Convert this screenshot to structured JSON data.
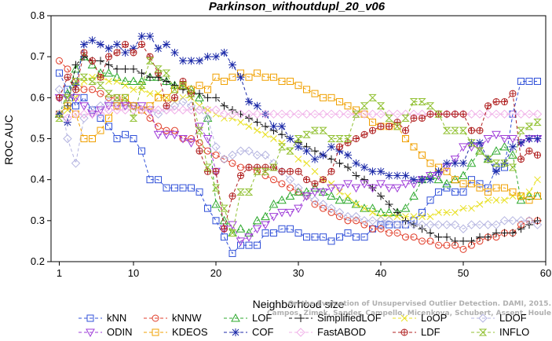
{
  "chart_data": {
    "type": "line",
    "title": "Parkinson_withoutdupl_20_v06",
    "xlabel": "Neighborhood size",
    "ylabel": "ROC AUC",
    "xlim": [
      0,
      60
    ],
    "ylim": [
      0.2,
      0.8
    ],
    "xticks": [
      "1",
      "10",
      "20",
      "30",
      "40",
      "50",
      "60"
    ],
    "yticks": [
      "0.2",
      "0.3",
      "0.4",
      "0.5",
      "0.6",
      "0.7",
      "0.8"
    ],
    "grid": false,
    "legend_position": "bottom",
    "watermark": [
      "Campos, Zimek, Sander, Campello, Micenkova, Schubert, Assent, Houle",
      "On the Evaluation of Unsupervised Outlier Detection. DAMI, 2015."
    ],
    "x": [
      1,
      2,
      3,
      4,
      5,
      6,
      7,
      8,
      9,
      10,
      11,
      12,
      13,
      14,
      15,
      16,
      17,
      18,
      19,
      20,
      21,
      22,
      23,
      24,
      25,
      26,
      27,
      28,
      29,
      30,
      31,
      32,
      33,
      34,
      35,
      36,
      37,
      38,
      39,
      40,
      41,
      42,
      43,
      44,
      45,
      46,
      47,
      48,
      49,
      50,
      51,
      52,
      53,
      54,
      55,
      56,
      57,
      58,
      59
    ],
    "series": [
      {
        "name": "kNN",
        "color": "#3050d8",
        "marker": "square",
        "values": [
          0.66,
          0.62,
          0.58,
          0.6,
          0.57,
          0.55,
          0.53,
          0.5,
          0.51,
          0.5,
          0.47,
          0.4,
          0.4,
          0.38,
          0.38,
          0.38,
          0.38,
          0.37,
          0.33,
          0.3,
          0.26,
          0.22,
          0.24,
          0.24,
          0.24,
          0.27,
          0.27,
          0.28,
          0.28,
          0.27,
          0.26,
          0.26,
          0.26,
          0.25,
          0.26,
          0.27,
          0.26,
          0.26,
          0.28,
          0.29,
          0.29,
          0.29,
          0.29,
          0.3,
          0.32,
          0.35,
          0.37,
          0.38,
          0.37,
          0.37,
          0.4,
          0.39,
          0.38,
          0.43,
          0.43,
          0.56,
          0.64,
          0.64,
          0.64
        ]
      },
      {
        "name": "kNNW",
        "color": "#e03c28",
        "marker": "circle",
        "values": [
          0.69,
          0.67,
          0.64,
          0.62,
          0.62,
          0.61,
          0.6,
          0.6,
          0.59,
          0.58,
          0.57,
          0.55,
          0.53,
          0.52,
          0.52,
          0.5,
          0.5,
          0.49,
          0.47,
          0.46,
          0.45,
          0.44,
          0.43,
          0.43,
          0.42,
          0.41,
          0.4,
          0.39,
          0.38,
          0.37,
          0.36,
          0.34,
          0.33,
          0.32,
          0.31,
          0.3,
          0.3,
          0.29,
          0.28,
          0.28,
          0.27,
          0.27,
          0.26,
          0.26,
          0.25,
          0.25,
          0.24,
          0.24,
          0.24,
          0.23,
          0.24,
          0.25,
          0.26,
          0.26,
          0.27,
          0.27,
          0.29,
          0.3,
          0.3
        ]
      },
      {
        "name": "LOF",
        "color": "#2ca82c",
        "marker": "triangle-up",
        "values": [
          0.56,
          0.61,
          0.67,
          0.7,
          0.68,
          0.66,
          0.66,
          0.65,
          0.64,
          0.64,
          0.64,
          0.65,
          0.65,
          0.64,
          0.63,
          0.63,
          0.62,
          0.6,
          0.55,
          0.34,
          0.3,
          0.27,
          0.28,
          0.27,
          0.3,
          0.31,
          0.34,
          0.35,
          0.36,
          0.37,
          0.37,
          0.38,
          0.37,
          0.36,
          0.35,
          0.35,
          0.34,
          0.33,
          0.33,
          0.32,
          0.32,
          0.32,
          0.33,
          0.36,
          0.4,
          0.41,
          0.4,
          0.39,
          0.4,
          0.41,
          0.44,
          0.47,
          0.45,
          0.47,
          0.48,
          0.46,
          0.35,
          0.36,
          0.36
        ]
      },
      {
        "name": "SimplifiedLOF",
        "color": "#111111",
        "marker": "plus",
        "values": [
          0.56,
          0.58,
          0.68,
          0.7,
          0.69,
          0.69,
          0.68,
          0.67,
          0.67,
          0.67,
          0.66,
          0.65,
          0.65,
          0.64,
          0.63,
          0.62,
          0.61,
          0.61,
          0.6,
          0.6,
          0.58,
          0.57,
          0.56,
          0.55,
          0.54,
          0.53,
          0.52,
          0.51,
          0.5,
          0.49,
          0.48,
          0.47,
          0.46,
          0.45,
          0.44,
          0.43,
          0.41,
          0.4,
          0.38,
          0.36,
          0.34,
          0.32,
          0.3,
          0.29,
          0.28,
          0.27,
          0.26,
          0.26,
          0.25,
          0.25,
          0.25,
          0.26,
          0.26,
          0.27,
          0.27,
          0.27,
          0.28,
          0.29,
          0.3
        ]
      },
      {
        "name": "LoOP",
        "color": "#e8e020",
        "marker": "x",
        "values": [
          0.55,
          0.57,
          0.6,
          0.64,
          0.65,
          0.65,
          0.64,
          0.64,
          0.63,
          0.62,
          0.62,
          0.61,
          0.61,
          0.6,
          0.59,
          0.6,
          0.6,
          0.58,
          0.57,
          0.56,
          0.55,
          0.55,
          0.54,
          0.53,
          0.52,
          0.51,
          0.5,
          0.49,
          0.47,
          0.45,
          0.44,
          0.42,
          0.4,
          0.39,
          0.37,
          0.36,
          0.34,
          0.33,
          0.32,
          0.31,
          0.31,
          0.31,
          0.31,
          0.31,
          0.31,
          0.31,
          0.32,
          0.32,
          0.32,
          0.33,
          0.33,
          0.34,
          0.35,
          0.35,
          0.35,
          0.36,
          0.36,
          0.37,
          0.4
        ]
      },
      {
        "name": "LDOF",
        "color": "#b4b4e0",
        "marker": "diamond",
        "values": [
          0.62,
          0.5,
          0.44,
          0.55,
          0.57,
          0.58,
          0.59,
          0.59,
          0.58,
          0.58,
          0.57,
          0.57,
          0.56,
          0.57,
          0.58,
          0.59,
          0.58,
          0.57,
          0.55,
          0.48,
          0.45,
          0.46,
          0.47,
          0.47,
          0.46,
          0.46,
          0.44,
          0.42,
          0.4,
          0.38,
          0.36,
          0.35,
          0.34,
          0.33,
          0.32,
          0.31,
          0.31,
          0.3,
          0.3,
          0.3,
          0.3,
          0.29,
          0.29,
          0.29,
          0.29,
          0.29,
          0.29,
          0.29,
          0.29,
          0.28,
          0.29,
          0.29,
          0.29,
          0.29,
          0.3,
          0.3,
          0.3,
          0.3,
          0.29
        ]
      },
      {
        "name": "ODIN",
        "color": "#9e3cd8",
        "marker": "triangle-down",
        "values": [
          0.6,
          0.6,
          0.6,
          0.58,
          0.56,
          0.57,
          0.58,
          0.58,
          0.58,
          0.58,
          0.58,
          0.57,
          0.51,
          0.51,
          0.51,
          0.5,
          0.49,
          0.53,
          0.5,
          0.42,
          0.28,
          0.29,
          0.25,
          0.26,
          0.28,
          0.29,
          0.31,
          0.32,
          0.32,
          0.33,
          0.36,
          0.37,
          0.37,
          0.38,
          0.38,
          0.39,
          0.38,
          0.39,
          0.38,
          0.39,
          0.38,
          0.38,
          0.39,
          0.39,
          0.4,
          0.41,
          0.41,
          0.43,
          0.45,
          0.48,
          0.48,
          0.48,
          0.5,
          0.51,
          0.5,
          0.5,
          0.49,
          0.5,
          0.5
        ]
      },
      {
        "name": "KDEOS",
        "color": "#f0a000",
        "marker": "square",
        "values": [
          0.56,
          0.58,
          0.56,
          0.5,
          0.5,
          0.52,
          0.55,
          0.58,
          0.6,
          0.58,
          0.57,
          0.58,
          0.6,
          0.6,
          0.62,
          0.63,
          0.62,
          0.63,
          0.62,
          0.65,
          0.64,
          0.65,
          0.66,
          0.65,
          0.66,
          0.65,
          0.65,
          0.64,
          0.64,
          0.63,
          0.62,
          0.61,
          0.6,
          0.6,
          0.59,
          0.58,
          0.57,
          0.56,
          0.54,
          0.53,
          0.53,
          0.53,
          0.5,
          0.48,
          0.46,
          0.44,
          0.43,
          0.42,
          0.4,
          0.39,
          0.39,
          0.38,
          0.37,
          0.38,
          0.38,
          0.37,
          0.36,
          0.35,
          0.36
        ]
      },
      {
        "name": "COF",
        "color": "#1c2aa8",
        "marker": "asterisk",
        "values": [
          0.56,
          0.54,
          0.63,
          0.73,
          0.74,
          0.73,
          0.72,
          0.73,
          0.71,
          0.72,
          0.75,
          0.75,
          0.72,
          0.73,
          0.71,
          0.69,
          0.69,
          0.69,
          0.7,
          0.7,
          0.71,
          0.68,
          0.65,
          0.59,
          0.58,
          0.56,
          0.53,
          0.53,
          0.5,
          0.48,
          0.47,
          0.45,
          0.46,
          0.48,
          0.47,
          0.46,
          0.44,
          0.43,
          0.42,
          0.42,
          0.41,
          0.41,
          0.41,
          0.4,
          0.4,
          0.4,
          0.42,
          0.44,
          0.44,
          0.44,
          0.49,
          0.49,
          0.45,
          0.42,
          0.44,
          0.48,
          0.49,
          0.5,
          0.5
        ]
      },
      {
        "name": "FastABOD",
        "color": "#f0b0e8",
        "marker": "diamond",
        "values": [
          0.56,
          0.55,
          0.56,
          0.56,
          0.56,
          0.56,
          0.57,
          0.57,
          0.57,
          0.57,
          0.57,
          0.57,
          0.57,
          0.57,
          0.57,
          0.57,
          0.57,
          0.57,
          0.57,
          0.57,
          0.56,
          0.56,
          0.56,
          0.56,
          0.56,
          0.56,
          0.56,
          0.56,
          0.56,
          0.56,
          0.56,
          0.56,
          0.56,
          0.56,
          0.56,
          0.56,
          0.56,
          0.56,
          0.56,
          0.56,
          0.56,
          0.56,
          0.56,
          0.56,
          0.56,
          0.56,
          0.56,
          0.56,
          0.56,
          0.56,
          0.56,
          0.56,
          0.56,
          0.56,
          0.56,
          0.56,
          0.56,
          0.56,
          0.56
        ]
      },
      {
        "name": "LDF",
        "color": "#b02020",
        "marker": "circle-plus",
        "values": [
          0.6,
          0.65,
          0.62,
          0.71,
          0.69,
          0.65,
          0.7,
          0.71,
          0.73,
          0.71,
          0.73,
          0.7,
          0.66,
          0.58,
          0.6,
          0.64,
          0.61,
          0.47,
          0.42,
          0.42,
          0.28,
          0.36,
          0.41,
          0.43,
          0.43,
          0.43,
          0.43,
          0.42,
          0.42,
          0.42,
          0.4,
          0.39,
          0.4,
          0.42,
          0.48,
          0.49,
          0.5,
          0.51,
          0.52,
          0.53,
          0.53,
          0.54,
          0.52,
          0.55,
          0.55,
          0.56,
          0.56,
          0.56,
          0.56,
          0.56,
          0.52,
          0.52,
          0.58,
          0.59,
          0.59,
          0.61,
          0.45,
          0.47,
          0.46
        ]
      },
      {
        "name": "INFLO",
        "color": "#90c030",
        "marker": "hourglass",
        "values": [
          0.55,
          0.6,
          0.64,
          0.65,
          0.64,
          0.63,
          0.61,
          0.6,
          0.6,
          0.55,
          0.63,
          0.69,
          0.67,
          0.66,
          0.62,
          0.63,
          0.61,
          0.52,
          0.43,
          0.38,
          0.33,
          0.27,
          0.37,
          0.37,
          0.42,
          0.42,
          0.43,
          0.48,
          0.47,
          0.5,
          0.51,
          0.52,
          0.52,
          0.5,
          0.5,
          0.5,
          0.56,
          0.58,
          0.6,
          0.58,
          0.55,
          0.53,
          0.55,
          0.59,
          0.59,
          0.58,
          0.56,
          0.52,
          0.52,
          0.52,
          0.49,
          0.47,
          0.45,
          0.44,
          0.44,
          0.43,
          0.52,
          0.53,
          0.54
        ]
      }
    ]
  }
}
